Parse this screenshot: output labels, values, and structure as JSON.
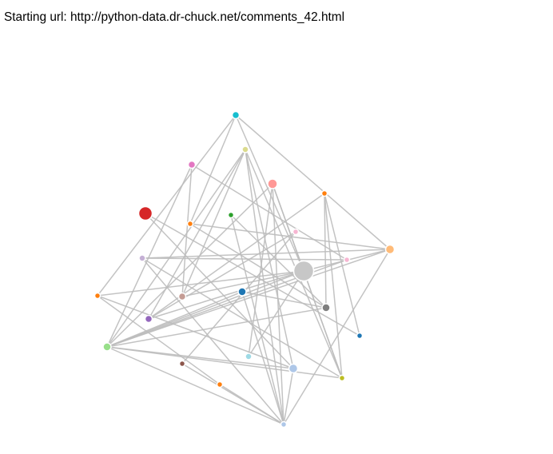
{
  "header": {
    "starting_url_text": "Starting url: http://python-data.dr-chuck.net/comments_42.html"
  },
  "graph": {
    "edge_color": "#bdbdbd",
    "nodes": [
      {
        "id": "n1",
        "color": "#17becf"
      },
      {
        "id": "n2",
        "color": "#dbdb8d"
      },
      {
        "id": "n3",
        "color": "#e377c2"
      },
      {
        "id": "n4",
        "color": "#ff9896"
      },
      {
        "id": "n5",
        "color": "#ff7f0e"
      },
      {
        "id": "n6",
        "color": "#d62728"
      },
      {
        "id": "n7",
        "color": "#2ca02c"
      },
      {
        "id": "n8",
        "color": "#ff7f0e"
      },
      {
        "id": "n9",
        "color": "#f7b6d2"
      },
      {
        "id": "n10",
        "color": "#ffbb78"
      },
      {
        "id": "n11",
        "color": "#c5b0d5"
      },
      {
        "id": "n12",
        "color": "#c7c7c7"
      },
      {
        "id": "n13",
        "color": "#f7b6d2"
      },
      {
        "id": "n14",
        "color": "#1f77b4"
      },
      {
        "id": "n15",
        "color": "#ff7f0e"
      },
      {
        "id": "n16",
        "color": "#c49c94"
      },
      {
        "id": "n17",
        "color": "#7f7f7f"
      },
      {
        "id": "n18",
        "color": "#9467bd"
      },
      {
        "id": "n19",
        "color": "#1f77b4"
      },
      {
        "id": "n20",
        "color": "#98df8a"
      },
      {
        "id": "n21",
        "color": "#9edae5"
      },
      {
        "id": "n22",
        "color": "#8c564b"
      },
      {
        "id": "n23",
        "color": "#aec7e8"
      },
      {
        "id": "n24",
        "color": "#bcbd22"
      },
      {
        "id": "n25",
        "color": "#ff7f0e"
      },
      {
        "id": "n26",
        "color": "#aec7e8"
      }
    ],
    "edges": [
      [
        "n1",
        "n10"
      ],
      [
        "n1",
        "n8"
      ],
      [
        "n1",
        "n15"
      ],
      [
        "n2",
        "n16"
      ],
      [
        "n2",
        "n26"
      ],
      [
        "n2",
        "n24"
      ],
      [
        "n2",
        "n23"
      ],
      [
        "n2",
        "n18"
      ],
      [
        "n3",
        "n13"
      ],
      [
        "n3",
        "n20"
      ],
      [
        "n4",
        "n12"
      ],
      [
        "n4",
        "n26"
      ],
      [
        "n4",
        "n24"
      ],
      [
        "n4",
        "n20"
      ],
      [
        "n5",
        "n17"
      ],
      [
        "n5",
        "n18"
      ],
      [
        "n6",
        "n19"
      ],
      [
        "n6",
        "n23"
      ],
      [
        "n7",
        "n17"
      ],
      [
        "n7",
        "n26"
      ],
      [
        "n8",
        "n10"
      ],
      [
        "n8",
        "n17"
      ],
      [
        "n9",
        "n18"
      ],
      [
        "n9",
        "n22"
      ],
      [
        "n10",
        "n11"
      ],
      [
        "n10",
        "n20"
      ],
      [
        "n10",
        "n26"
      ],
      [
        "n10",
        "n12"
      ],
      [
        "n11",
        "n13"
      ],
      [
        "n11",
        "n26"
      ],
      [
        "n11",
        "n24"
      ],
      [
        "n12",
        "n16"
      ],
      [
        "n12",
        "n20"
      ],
      [
        "n12",
        "n24"
      ],
      [
        "n12",
        "n21"
      ],
      [
        "n12",
        "n18"
      ],
      [
        "n12",
        "n15"
      ],
      [
        "n12",
        "n1"
      ],
      [
        "n13",
        "n20"
      ],
      [
        "n14",
        "n17"
      ],
      [
        "n14",
        "n20"
      ],
      [
        "n14",
        "n26"
      ],
      [
        "n15",
        "n25"
      ],
      [
        "n15",
        "n23"
      ],
      [
        "n16",
        "n3"
      ],
      [
        "n17",
        "n20"
      ],
      [
        "n19",
        "n5"
      ],
      [
        "n20",
        "n23"
      ],
      [
        "n20",
        "n26"
      ],
      [
        "n20",
        "n2"
      ],
      [
        "n21",
        "n4"
      ],
      [
        "n23",
        "n26"
      ],
      [
        "n24",
        "n20"
      ],
      [
        "n24",
        "n5"
      ],
      [
        "n25",
        "n26"
      ],
      [
        "n26",
        "n22"
      ]
    ]
  }
}
